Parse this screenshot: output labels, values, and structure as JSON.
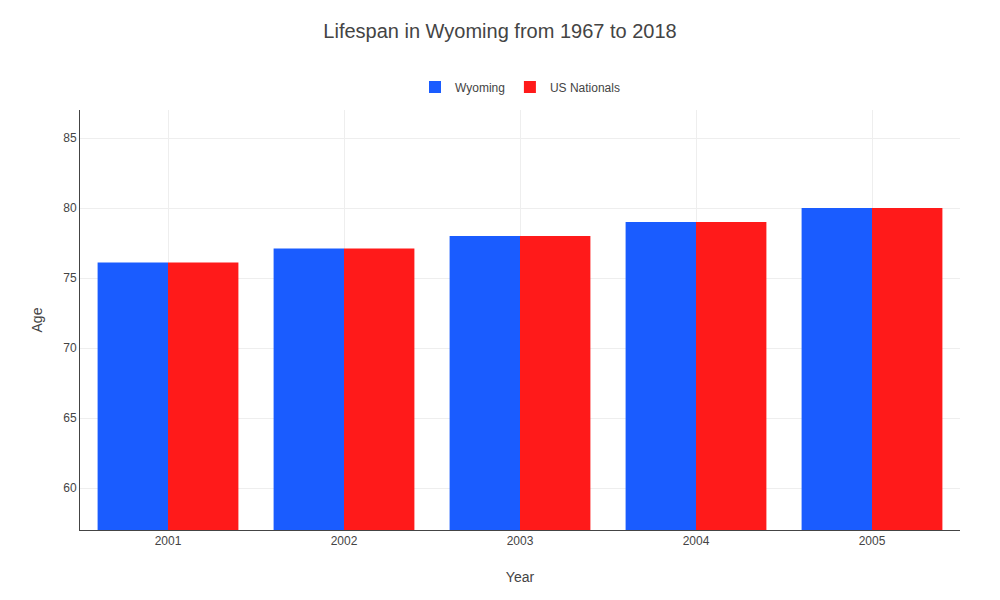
{
  "chart_data": {
    "type": "bar",
    "title": "Lifespan in Wyoming from 1967 to 2018",
    "xlabel": "Year",
    "ylabel": "Age",
    "categories": [
      "2001",
      "2002",
      "2003",
      "2004",
      "2005"
    ],
    "series": [
      {
        "name": "Wyoming",
        "color": "#1a5cff",
        "values": [
          76.1,
          77.1,
          78.0,
          79.0,
          80.0
        ]
      },
      {
        "name": "US Nationals",
        "color": "#ff1a1a",
        "values": [
          76.1,
          77.1,
          78.0,
          79.0,
          80.0
        ]
      }
    ],
    "ylim": [
      57,
      87
    ],
    "yticks": [
      60,
      65,
      70,
      75,
      80,
      85
    ],
    "grid": true,
    "legend": "top"
  }
}
